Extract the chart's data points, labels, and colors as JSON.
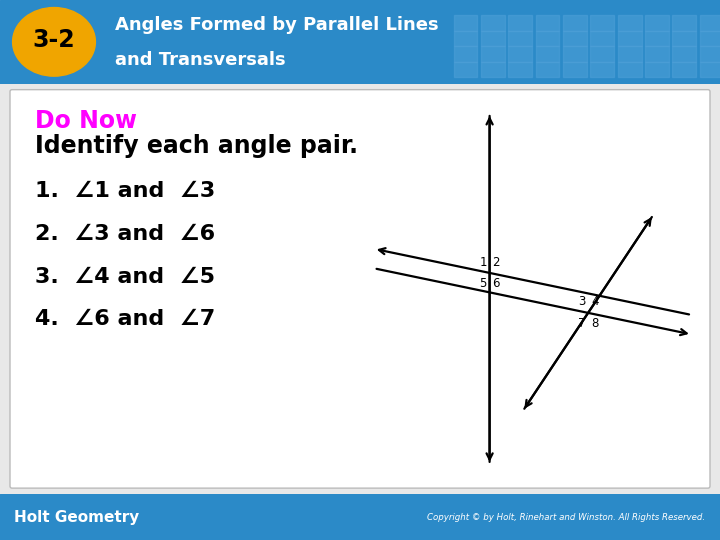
{
  "title_line1": "Angles Formed by Parallel Lines",
  "title_line2": "and Transversals",
  "section_num": "3-2",
  "do_now_label": "Do Now",
  "subtitle": "Identify each angle pair.",
  "items": [
    "1.  ∠1 and  ∠3",
    "2.  ∠3 and  ∠6",
    "3.  ∠4 and  ∠5",
    "4.  ∠6 and  ∠7"
  ],
  "header_bg": "#2b8ac8",
  "header_text_color": "#ffffff",
  "badge_bg": "#f0a500",
  "badge_text_color": "#000000",
  "content_bg": "#e8e8e8",
  "border_color": "#bbbbbb",
  "do_now_color": "#ff00ff",
  "body_text_color": "#000000",
  "footer_bg": "#2b8ac8",
  "footer_text": "Holt Geometry",
  "footer_text_color": "#ffffff",
  "copyright_text": "Copyright © by Holt, Rinehart and Winston. All Rights Reserved.",
  "copyright_color": "#ffffff",
  "grid_color": "#4fa0d8",
  "p1": [
    -0.25,
    0.08
  ],
  "p2": [
    0.32,
    -0.12
  ],
  "slope_par": -0.18,
  "slope_diag": 1.3
}
